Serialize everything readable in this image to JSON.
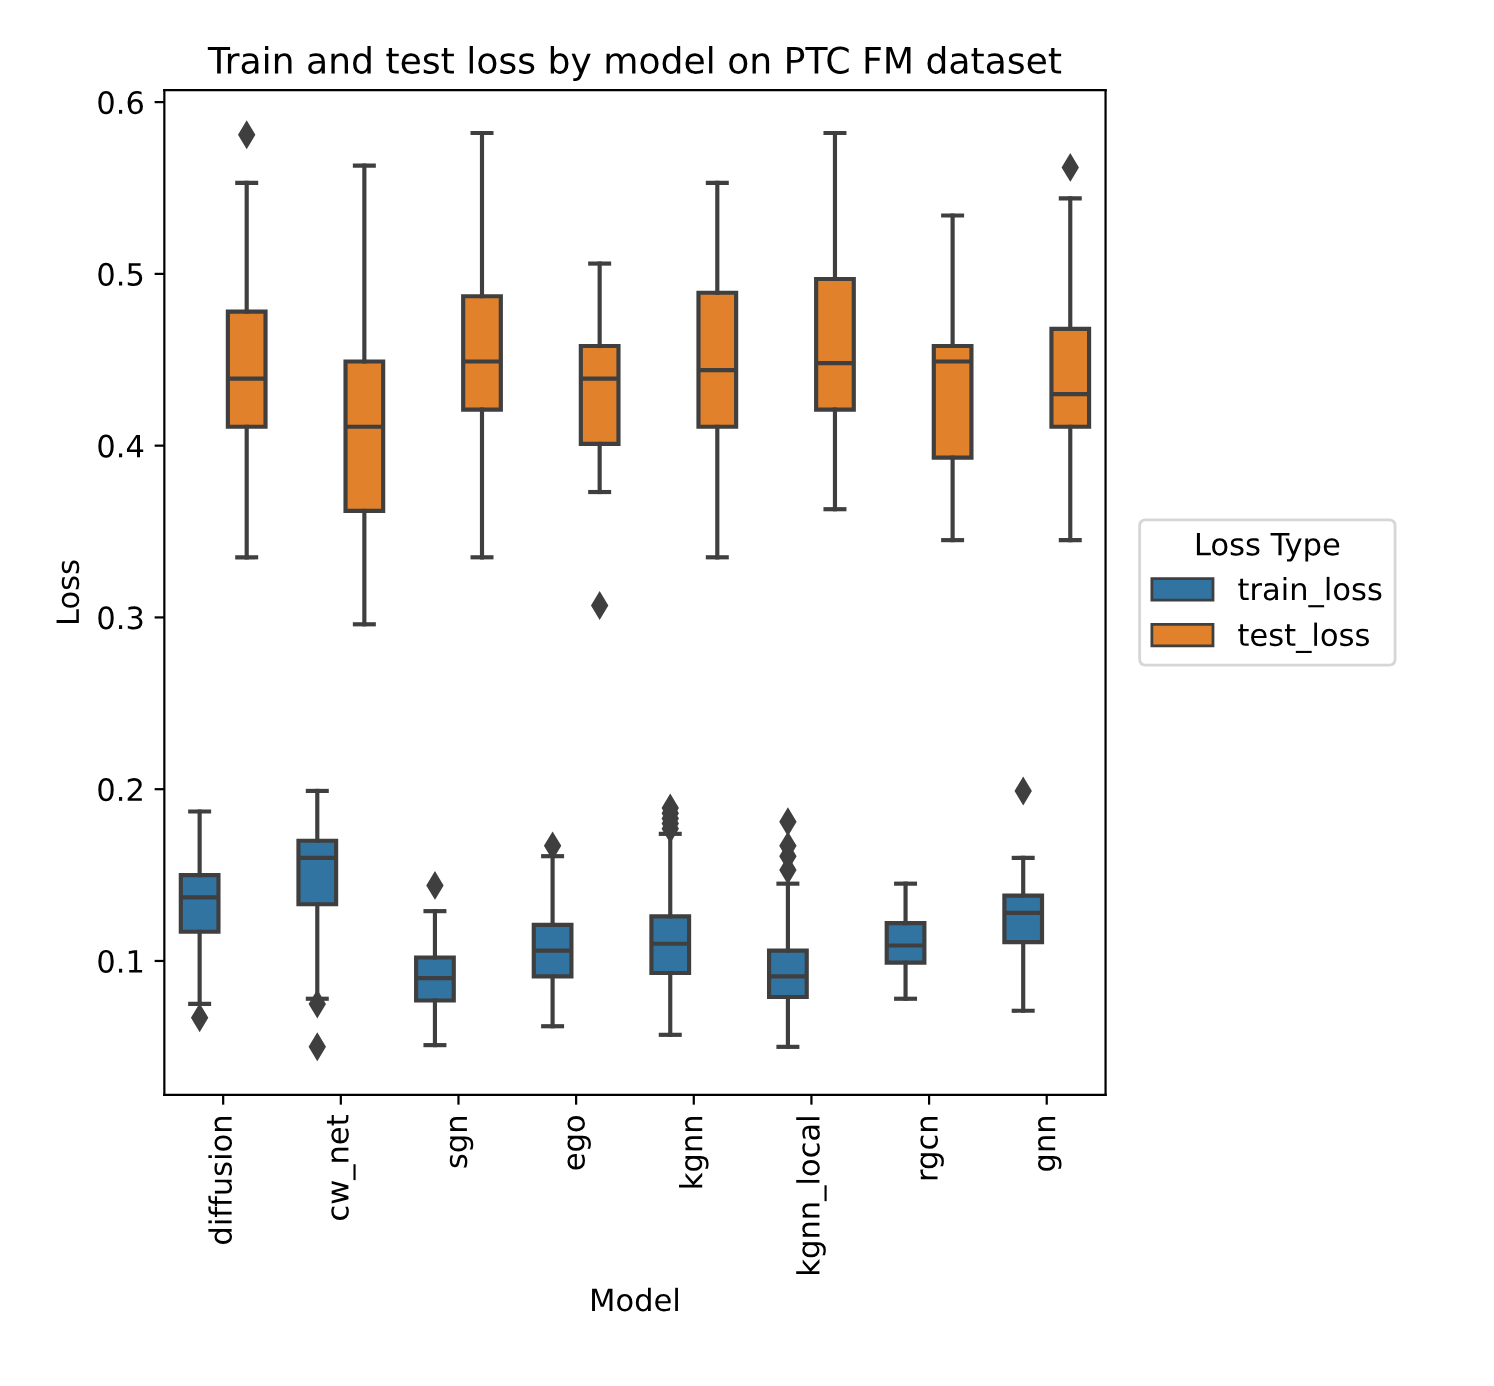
{
  "chart_data": {
    "type": "box",
    "title": "Train and test loss by model on PTC FM dataset",
    "xlabel": "Model",
    "ylabel": "Loss",
    "legend_title": "Loss Type",
    "legend": "right",
    "grid": false,
    "marker": "diamond",
    "categories": [
      "diffusion",
      "cw_net",
      "sgn",
      "ego",
      "kgnn",
      "kgnn_local",
      "rgcn",
      "gnn"
    ],
    "ylim": [
      0.022,
      0.607
    ],
    "yticks": [
      {
        "value": 0.1,
        "label": "0.1"
      },
      {
        "value": 0.2,
        "label": "0.2"
      },
      {
        "value": 0.3,
        "label": "0.3"
      },
      {
        "value": 0.4,
        "label": "0.4"
      },
      {
        "value": 0.5,
        "label": "0.5"
      },
      {
        "value": 0.6,
        "label": "0.6"
      }
    ],
    "series": [
      {
        "name": "train_loss",
        "color": "#3274a1",
        "boxes": [
          {
            "low": 0.075,
            "q1": 0.117,
            "median": 0.137,
            "q3": 0.15,
            "high": 0.187,
            "outliers": [
              0.067
            ]
          },
          {
            "low": 0.078,
            "q1": 0.133,
            "median": 0.16,
            "q3": 0.17,
            "high": 0.199,
            "outliers": [
              0.075,
              0.05
            ]
          },
          {
            "low": 0.051,
            "q1": 0.077,
            "median": 0.09,
            "q3": 0.102,
            "high": 0.129,
            "outliers": [
              0.144
            ]
          },
          {
            "low": 0.062,
            "q1": 0.091,
            "median": 0.106,
            "q3": 0.121,
            "high": 0.161,
            "outliers": [
              0.167
            ]
          },
          {
            "low": 0.057,
            "q1": 0.093,
            "median": 0.11,
            "q3": 0.126,
            "high": 0.174,
            "outliers": [
              0.177,
              0.18,
              0.183,
              0.186,
              0.189
            ]
          },
          {
            "low": 0.05,
            "q1": 0.079,
            "median": 0.091,
            "q3": 0.106,
            "high": 0.145,
            "outliers": [
              0.153,
              0.161,
              0.167,
              0.181
            ]
          },
          {
            "low": 0.078,
            "q1": 0.099,
            "median": 0.109,
            "q3": 0.122,
            "high": 0.145
          },
          {
            "low": 0.071,
            "q1": 0.111,
            "median": 0.128,
            "q3": 0.138,
            "high": 0.16,
            "outliers": [
              0.199
            ]
          }
        ]
      },
      {
        "name": "test_loss",
        "color": "#e1812c",
        "boxes": [
          {
            "low": 0.335,
            "q1": 0.411,
            "median": 0.439,
            "q3": 0.478,
            "high": 0.553,
            "outliers": [
              0.581
            ]
          },
          {
            "low": 0.296,
            "q1": 0.362,
            "median": 0.411,
            "q3": 0.449,
            "high": 0.563
          },
          {
            "low": 0.335,
            "q1": 0.421,
            "median": 0.449,
            "q3": 0.487,
            "high": 0.582
          },
          {
            "low": 0.373,
            "q1": 0.401,
            "median": 0.439,
            "q3": 0.458,
            "high": 0.506,
            "outliers": [
              0.307
            ]
          },
          {
            "low": 0.335,
            "q1": 0.411,
            "median": 0.444,
            "q3": 0.489,
            "high": 0.553
          },
          {
            "low": 0.363,
            "q1": 0.421,
            "median": 0.448,
            "q3": 0.497,
            "high": 0.582
          },
          {
            "low": 0.345,
            "q1": 0.393,
            "median": 0.449,
            "q3": 0.458,
            "high": 0.534
          },
          {
            "low": 0.345,
            "q1": 0.411,
            "median": 0.43,
            "q3": 0.468,
            "high": 0.544,
            "outliers": [
              0.562
            ]
          }
        ]
      }
    ]
  }
}
